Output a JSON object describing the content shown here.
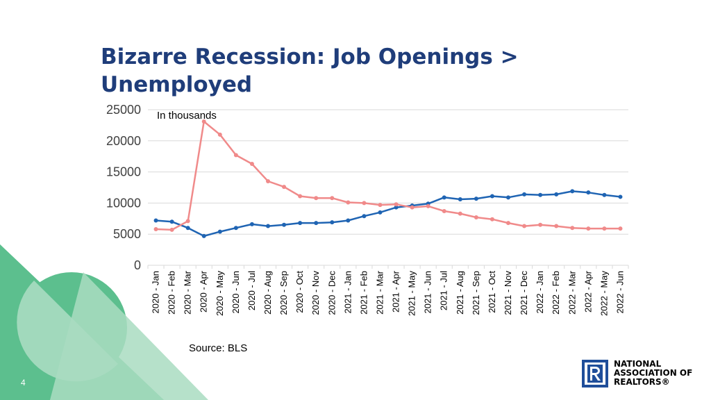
{
  "slide": {
    "title": "Bizarre Recession: Job Openings > Unemployed",
    "unit_note": "In thousands",
    "source": "Source: BLS",
    "slide_number": "4",
    "logo_lines": [
      "NATIONAL",
      "ASSOCIATION OF",
      "REALTORS®"
    ]
  },
  "colors": {
    "title": "#1f3d7a",
    "job_openings": "#1f64b3",
    "unemployed": "#f08a8a",
    "gridline": "#d9d9d9",
    "deco_green": "#5cbf8e",
    "deco_light": "#a9dcc1",
    "logo_blue": "#1f4e9a"
  },
  "chart_data": {
    "type": "line",
    "title": "Bizarre Recession: Job Openings > Unemployed",
    "ylabel": "In thousands",
    "ylim": [
      0,
      25000
    ],
    "yticks": [
      0,
      5000,
      10000,
      15000,
      20000,
      25000
    ],
    "grid": true,
    "categories": [
      "2020 - Jan",
      "2020 - Feb",
      "2020 - Mar",
      "2020 - Apr",
      "2020 - May",
      "2020 - Jun",
      "2020 - Jul",
      "2020 - Aug",
      "2020 - Sep",
      "2020 - Oct",
      "2020 - Nov",
      "2020 - Dec",
      "2021 - Jan",
      "2021 - Feb",
      "2021 - Mar",
      "2021 - Apr",
      "2021 - May",
      "2021 - Jun",
      "2021 - Jul",
      "2021 - Aug",
      "2021 - Sep",
      "2021 - Oct",
      "2021 - Nov",
      "2021 - Dec",
      "2022 - Jan",
      "2022 - Feb",
      "2022 - Mar",
      "2022 - Apr",
      "2022 - May",
      "2022 - Jun"
    ],
    "series": [
      {
        "color_key": "job_openings",
        "values": [
          7200,
          7000,
          6000,
          4700,
          5400,
          6000,
          6600,
          6300,
          6500,
          6800,
          6800,
          6900,
          7200,
          7900,
          8500,
          9300,
          9600,
          9900,
          10900,
          10600,
          10700,
          11100,
          10900,
          11400,
          11300,
          11400,
          11900,
          11700,
          11300,
          11000
        ]
      },
      {
        "color_key": "unemployed",
        "values": [
          5800,
          5700,
          7100,
          23100,
          21000,
          17700,
          16300,
          13500,
          12600,
          11100,
          10800,
          10800,
          10100,
          10000,
          9700,
          9800,
          9300,
          9500,
          8700,
          8300,
          7700,
          7400,
          6800,
          6300,
          6500,
          6300,
          6000,
          5900,
          5900,
          5900
        ]
      }
    ]
  }
}
